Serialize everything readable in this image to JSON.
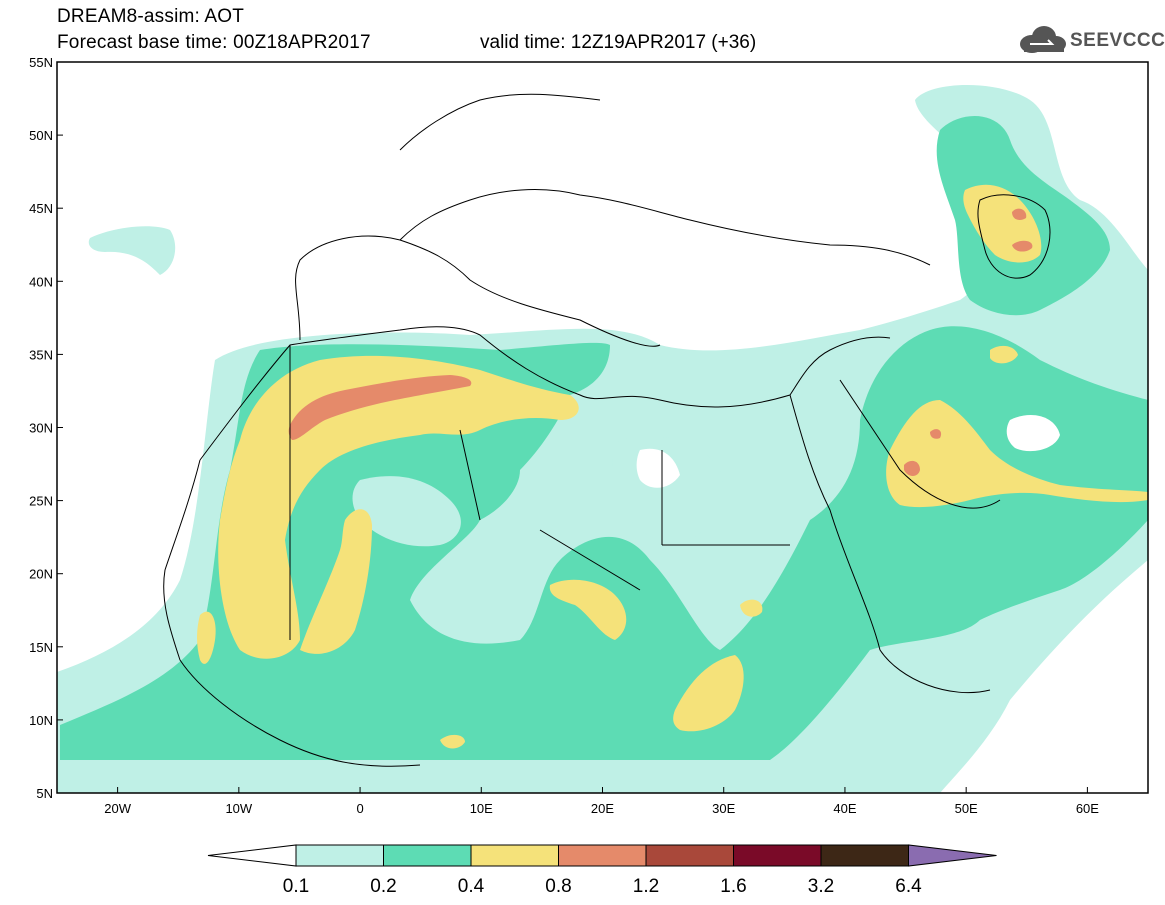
{
  "header": {
    "line1": "DREAM8-assim: AOT",
    "line2": "Forecast base time: 00Z18APR2017",
    "valid": "valid time: 12Z19APR2017 (+36)"
  },
  "logo": {
    "text": "SEEVCCC",
    "icon": "cloud-icon"
  },
  "map": {
    "lon_range": [
      -25,
      65
    ],
    "lat_range": [
      5,
      55
    ],
    "lat_labels": [
      "55N",
      "50N",
      "45N",
      "40N",
      "35N",
      "30N",
      "25N",
      "20N",
      "15N",
      "10N",
      "5N"
    ],
    "lon_labels": [
      "20W",
      "10W",
      "0",
      "10E",
      "20E",
      "30E",
      "40E",
      "50E",
      "60E"
    ]
  },
  "colorbar": {
    "labels": [
      "0.1",
      "0.2",
      "0.4",
      "0.8",
      "1.2",
      "1.6",
      "3.2",
      "6.4"
    ],
    "colors": [
      "#ffffff",
      "#bff0e6",
      "#5ddcb4",
      "#f5e27a",
      "#e58a6a",
      "#a9483a",
      "#7a0a28",
      "#3d2716",
      "#8a6cb0"
    ]
  }
}
